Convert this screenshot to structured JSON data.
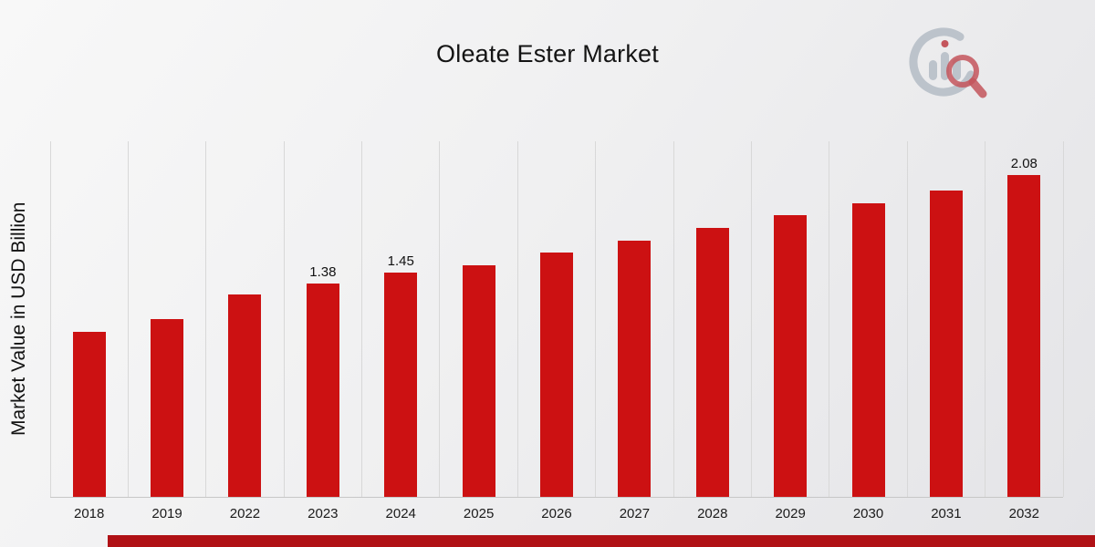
{
  "page": {
    "title": "Oleate Ester Market",
    "logo_name": "market-research-future-logo"
  },
  "chart_data": {
    "type": "bar",
    "title": "Oleate Ester Market",
    "xlabel": "",
    "ylabel": "Market Value in USD Billion",
    "categories": [
      "2018",
      "2019",
      "2022",
      "2023",
      "2024",
      "2025",
      "2026",
      "2027",
      "2028",
      "2029",
      "2030",
      "2031",
      "2032"
    ],
    "values": [
      1.07,
      1.15,
      1.31,
      1.38,
      1.45,
      1.5,
      1.58,
      1.66,
      1.74,
      1.82,
      1.9,
      1.98,
      2.08
    ],
    "data_labels": {
      "2023": "1.38",
      "2024": "1.45",
      "2032": "2.08"
    },
    "bar_color": "#cc1112",
    "ylim": [
      0,
      2.3
    ],
    "grid": "vertical-only",
    "legend": "none"
  },
  "footer": {
    "accent_color": "#b01115"
  }
}
